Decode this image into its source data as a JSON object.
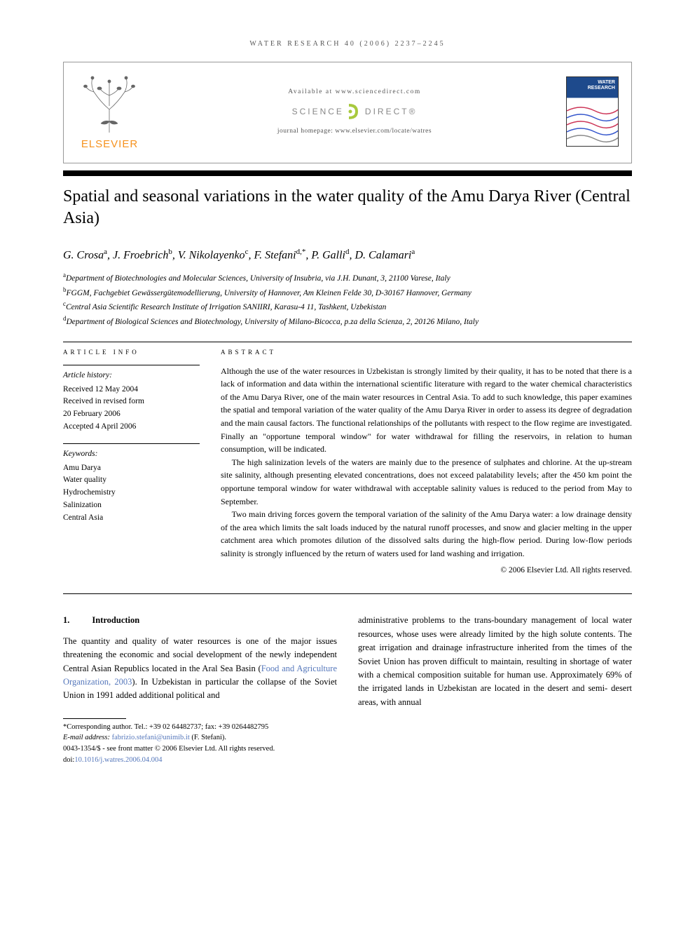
{
  "running_header": "WATER RESEARCH 40 (2006) 2237–2245",
  "header": {
    "elsevier_label": "ELSEVIER",
    "available_at": "Available at www.sciencedirect.com",
    "science_left": "SCIENCE",
    "science_right": "DIRECT®",
    "homepage": "journal homepage: www.elsevier.com/locate/watres",
    "cover_title_line1": "WATER",
    "cover_title_line2": "RESEARCH"
  },
  "title": "Spatial and seasonal variations in the water quality of the Amu Darya River (Central Asia)",
  "authors_html": "G. Crosa<sup>a</sup>, J. Froebrich<sup>b</sup>, V. Nikolayenko<sup>c</sup>, F. Stefani<sup>d,*</sup>, P. Galli<sup>d</sup>, D. Calamari<sup>a</sup>",
  "affiliations": [
    "<sup>a</sup>Department of Biotechnologies and Molecular Sciences, University of Insubria, via J.H. Dunant, 3, 21100 Varese, Italy",
    "<sup>b</sup>FGGM, Fachgebiet Gewässergütemodellierung, University of Hannover, Am Kleinen Felde 30, D-30167 Hannover, Germany",
    "<sup>c</sup>Central Asia Scientific Research Institute of Irrigation SANIIRI, Karasu-4 11, Tashkent, Uzbekistan",
    "<sup>d</sup>Department of Biological Sciences and Biotechnology, University of Milano-Bicocca, p.za della Scienza, 2, 20126 Milano, Italy"
  ],
  "info": {
    "heading": "ARTICLE INFO",
    "history_label": "Article history:",
    "history": [
      "Received 12 May 2004",
      "Received in revised form",
      "20 February 2006",
      "Accepted 4 April 2006"
    ],
    "keywords_label": "Keywords:",
    "keywords": [
      "Amu Darya",
      "Water quality",
      "Hydrochemistry",
      "Salinization",
      "Central Asia"
    ]
  },
  "abstract": {
    "heading": "ABSTRACT",
    "p1": "Although the use of the water resources in Uzbekistan is strongly limited by their quality, it has to be noted that there is a lack of information and data within the international scientific literature with regard to the water chemical characteristics of the Amu Darya River, one of the main water resources in Central Asia. To add to such knowledge, this paper examines the spatial and temporal variation of the water quality of the Amu Darya River in order to assess its degree of degradation and the main causal factors. The functional relationships of the pollutants with respect to the flow regime are investigated. Finally an \"opportune temporal window\" for water withdrawal for filling the reservoirs, in relation to human consumption, will be indicated.",
    "p2": "The high salinization levels of the waters are mainly due to the presence of sulphates and chlorine. At the up-stream site salinity, although presenting elevated concentrations, does not exceed palatability levels; after the 450 km point the opportune temporal window for water withdrawal with acceptable salinity values is reduced to the period from May to September.",
    "p3": "Two main driving forces govern the temporal variation of the salinity of the Amu Darya water: a low drainage density of the area which limits the salt loads induced by the natural runoff processes, and snow and glacier melting in the upper catchment area which promotes dilution of the dissolved salts during the high-flow period. During low-flow periods salinity is strongly influenced by the return of waters used for land washing and irrigation.",
    "copyright": "© 2006 Elsevier Ltd. All rights reserved."
  },
  "section1": {
    "num": "1.",
    "title": "Introduction",
    "left_text_pre": "The quantity and quality of water resources is one of the major issues threatening the economic and social development of the newly independent Central Asian Republics located in the Aral Sea Basin (",
    "ref": "Food and Agriculture Organization, 2003",
    "left_text_post": "). In Uzbekistan in particular the collapse of the Soviet Union in 1991 added additional political and",
    "right_text": "administrative problems to the trans-boundary management of local water resources, whose uses were already limited by the high solute contents. The great irrigation and drainage infrastructure inherited from the times of the Soviet Union has proven difficult to maintain, resulting in shortage of water with a chemical composition suitable for human use. Approximately 69% of the irrigated lands in Uzbekistan are located in the desert and semi- desert areas, with annual"
  },
  "footnotes": {
    "corr": "*Corresponding author. Tel.: +39 02 64482737; fax: +39 0264482795",
    "email_label": "E-mail address: ",
    "email": "fabrizio.stefani@unimib.it",
    "email_author": " (F. Stefani).",
    "front_matter": "0043-1354/$ - see front matter © 2006 Elsevier Ltd. All rights reserved.",
    "doi_label": "doi:",
    "doi": "10.1016/j.watres.2006.04.004"
  },
  "colors": {
    "elsevier_orange": "#f6921e",
    "sd_green": "#a8c93e",
    "link_blue": "#5577bb",
    "cover_blue": "#1e4a8c"
  }
}
